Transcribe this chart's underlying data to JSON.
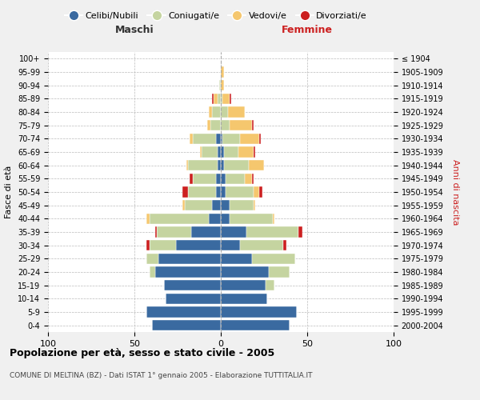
{
  "age_groups": [
    "0-4",
    "5-9",
    "10-14",
    "15-19",
    "20-24",
    "25-29",
    "30-34",
    "35-39",
    "40-44",
    "45-49",
    "50-54",
    "55-59",
    "60-64",
    "65-69",
    "70-74",
    "75-79",
    "80-84",
    "85-89",
    "90-94",
    "95-99",
    "100+"
  ],
  "birth_years": [
    "2000-2004",
    "1995-1999",
    "1990-1994",
    "1985-1989",
    "1980-1984",
    "1975-1979",
    "1970-1974",
    "1965-1969",
    "1960-1964",
    "1955-1959",
    "1950-1954",
    "1945-1949",
    "1940-1944",
    "1935-1939",
    "1930-1934",
    "1925-1929",
    "1920-1924",
    "1915-1919",
    "1910-1914",
    "1905-1909",
    "≤ 1904"
  ],
  "males": {
    "celibi": [
      40,
      43,
      32,
      33,
      38,
      36,
      26,
      17,
      7,
      5,
      3,
      3,
      2,
      2,
      3,
      0,
      0,
      0,
      0,
      0,
      0
    ],
    "coniugati": [
      0,
      0,
      0,
      0,
      3,
      7,
      15,
      20,
      34,
      16,
      16,
      13,
      17,
      9,
      13,
      6,
      5,
      2,
      1,
      0,
      0
    ],
    "vedovi": [
      0,
      0,
      0,
      0,
      0,
      0,
      0,
      0,
      2,
      1,
      0,
      0,
      1,
      1,
      2,
      2,
      2,
      2,
      0,
      0,
      0
    ],
    "divorziati": [
      0,
      0,
      0,
      0,
      0,
      0,
      2,
      1,
      0,
      0,
      3,
      2,
      0,
      0,
      0,
      0,
      0,
      1,
      0,
      0,
      0
    ]
  },
  "females": {
    "nubili": [
      40,
      44,
      27,
      26,
      28,
      18,
      11,
      15,
      5,
      5,
      3,
      3,
      2,
      2,
      1,
      0,
      0,
      0,
      0,
      0,
      0
    ],
    "coniugate": [
      0,
      0,
      0,
      5,
      12,
      25,
      25,
      30,
      25,
      14,
      16,
      11,
      14,
      8,
      10,
      5,
      4,
      1,
      0,
      0,
      0
    ],
    "vedove": [
      0,
      0,
      0,
      0,
      0,
      0,
      0,
      0,
      1,
      1,
      3,
      4,
      9,
      9,
      11,
      13,
      10,
      4,
      2,
      2,
      0
    ],
    "divorziate": [
      0,
      0,
      0,
      0,
      0,
      0,
      2,
      2,
      0,
      0,
      2,
      1,
      0,
      1,
      1,
      1,
      0,
      1,
      0,
      0,
      0
    ]
  },
  "colors": {
    "celibi_nubili": "#3a6aa0",
    "coniugati": "#c5d4a0",
    "vedovi": "#f5c76e",
    "divorziati": "#cc2020"
  },
  "xlim": 100,
  "title": "Popolazione per età, sesso e stato civile - 2005",
  "subtitle": "COMUNE DI MELTINA (BZ) - Dati ISTAT 1° gennaio 2005 - Elaborazione TUTTITALIA.IT",
  "xlabel_left": "Maschi",
  "xlabel_right": "Femmine",
  "ylabel_left": "Fasce di età",
  "ylabel_right": "Anni di nascita",
  "legend_labels": [
    "Celibi/Nubili",
    "Coniugati/e",
    "Vedovi/e",
    "Divorziati/e"
  ],
  "background_color": "#f0f0f0",
  "plot_background": "#ffffff"
}
